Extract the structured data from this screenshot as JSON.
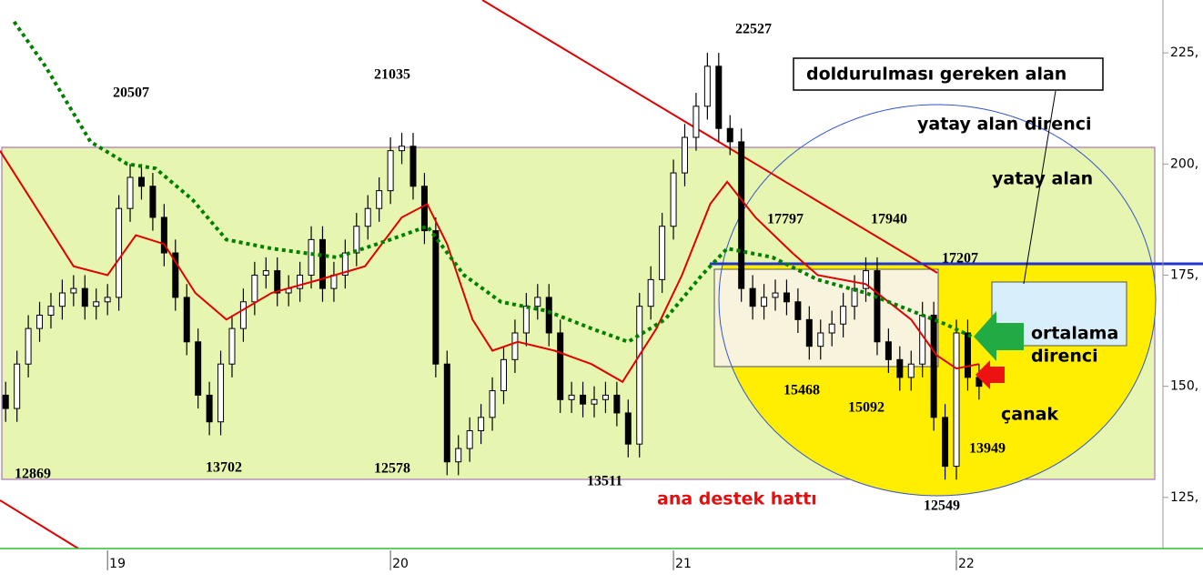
{
  "chart_data": {
    "type": "candlestick",
    "x": [
      18.64,
      18.68,
      18.72,
      18.76,
      18.8,
      18.84,
      18.88,
      18.92,
      18.96,
      19.0,
      19.04,
      19.08,
      19.12,
      19.16,
      19.2,
      19.24,
      19.28,
      19.32,
      19.36,
      19.4,
      19.44,
      19.48,
      19.52,
      19.56,
      19.6,
      19.64,
      19.68,
      19.72,
      19.76,
      19.8,
      19.84,
      19.88,
      19.92,
      19.96,
      20.0,
      20.04,
      20.08,
      20.12,
      20.16,
      20.2,
      20.24,
      20.28,
      20.32,
      20.36,
      20.4,
      20.44,
      20.48,
      20.52,
      20.56,
      20.6,
      20.64,
      20.68,
      20.72,
      20.76,
      20.8,
      20.84,
      20.88,
      20.92,
      20.96,
      21.0,
      21.04,
      21.08,
      21.12,
      21.16,
      21.2,
      21.24,
      21.28,
      21.32,
      21.36,
      21.4,
      21.44,
      21.48,
      21.52,
      21.56,
      21.6,
      21.64,
      21.68,
      21.72,
      21.76,
      21.8,
      21.84,
      21.88,
      21.92,
      21.96,
      22.0,
      22.04,
      22.08
    ],
    "open": [
      148,
      145,
      155,
      163,
      166,
      168,
      171,
      172,
      168,
      169,
      170,
      190,
      197,
      195,
      188,
      180,
      170,
      160,
      148,
      142,
      155,
      163,
      169,
      175,
      176,
      171,
      172,
      175,
      183,
      172,
      175,
      180,
      186,
      190,
      194,
      203,
      204,
      195,
      185,
      155,
      133,
      136,
      140,
      143,
      149,
      156,
      162,
      168,
      170,
      162,
      147,
      148,
      146,
      147,
      148,
      144,
      137,
      168,
      174,
      186,
      198,
      206,
      213,
      222,
      208,
      205,
      172,
      168,
      170,
      171,
      169,
      165,
      159,
      162,
      164,
      168,
      172,
      176,
      160,
      156,
      152,
      155,
      166,
      143,
      132,
      162,
      152
    ],
    "high": [
      151,
      158,
      166,
      169,
      171,
      174,
      175,
      175,
      172,
      173,
      193,
      200,
      200,
      198,
      191,
      183,
      173,
      163,
      151,
      158,
      166,
      172,
      178,
      179,
      179,
      175,
      178,
      186,
      186,
      178,
      183,
      189,
      193,
      197,
      206,
      207,
      207,
      198,
      188,
      158,
      139,
      143,
      146,
      152,
      159,
      165,
      171,
      173,
      173,
      165,
      151,
      151,
      150,
      151,
      151,
      147,
      171,
      177,
      189,
      201,
      209,
      216,
      225,
      225,
      211,
      208,
      175,
      173,
      174,
      174,
      172,
      168,
      165,
      167,
      171,
      175,
      179,
      179,
      163,
      159,
      158,
      169,
      169,
      146,
      165,
      165,
      155
    ],
    "low": [
      142,
      142,
      152,
      160,
      163,
      165,
      168,
      165,
      165,
      166,
      167,
      187,
      192,
      185,
      177,
      167,
      157,
      145,
      139,
      139,
      152,
      160,
      166,
      172,
      168,
      168,
      169,
      172,
      169,
      169,
      172,
      177,
      183,
      187,
      191,
      200,
      192,
      182,
      152,
      130,
      130,
      133,
      137,
      140,
      146,
      153,
      159,
      165,
      159,
      144,
      144,
      143,
      143,
      144,
      141,
      134,
      134,
      165,
      171,
      183,
      195,
      203,
      210,
      205,
      202,
      169,
      165,
      165,
      167,
      166,
      162,
      156,
      156,
      159,
      161,
      165,
      169,
      157,
      153,
      149,
      149,
      152,
      140,
      129,
      129,
      149,
      147
    ],
    "close": [
      145,
      155,
      163,
      166,
      168,
      171,
      172,
      168,
      169,
      170,
      190,
      197,
      195,
      188,
      180,
      170,
      160,
      148,
      142,
      155,
      163,
      169,
      175,
      176,
      171,
      172,
      175,
      183,
      172,
      175,
      180,
      186,
      190,
      194,
      203,
      204,
      195,
      185,
      155,
      133,
      136,
      140,
      143,
      149,
      156,
      162,
      168,
      170,
      162,
      147,
      148,
      146,
      147,
      148,
      144,
      137,
      168,
      174,
      186,
      198,
      206,
      213,
      222,
      208,
      205,
      172,
      168,
      170,
      171,
      169,
      165,
      159,
      162,
      164,
      168,
      172,
      176,
      160,
      156,
      152,
      155,
      166,
      143,
      132,
      162,
      152,
      150
    ],
    "series": [
      {
        "color": "#e00000",
        "style": "solid",
        "x": [
          18.62,
          18.88,
          19.0,
          19.1,
          19.2,
          19.31,
          19.42,
          19.58,
          19.75,
          19.91,
          20.04,
          20.13,
          20.2,
          20.29,
          20.36,
          20.45,
          20.58,
          20.71,
          20.82,
          20.94,
          21.03,
          21.13,
          21.19,
          21.29,
          21.42,
          21.51,
          21.68,
          21.84,
          21.93,
          22.0,
          22.08
        ],
        "values": [
          203,
          177,
          175,
          184,
          182,
          171,
          165,
          171,
          174,
          177,
          188,
          191,
          182,
          165,
          158,
          160,
          158,
          155,
          151,
          163,
          175,
          191,
          196,
          188,
          180,
          175,
          173,
          165,
          157,
          154,
          155
        ]
      },
      {
        "color": "#008000",
        "style": "dotted",
        "x": [
          18.67,
          18.78,
          18.94,
          19.07,
          19.17,
          19.3,
          19.42,
          19.58,
          19.81,
          20.0,
          20.13,
          20.26,
          20.39,
          20.55,
          20.71,
          20.84,
          20.97,
          21.1,
          21.19,
          21.35,
          21.51,
          21.68,
          21.84,
          21.96,
          22.06
        ],
        "values": [
          232,
          222,
          205,
          200,
          199,
          192,
          183,
          181,
          179,
          183,
          186,
          175,
          169,
          167,
          163,
          160,
          165,
          175,
          181,
          179,
          174,
          171,
          167,
          164,
          161
        ]
      }
    ],
    "xlim": [
      18.62,
      22.73
    ],
    "xticks": [
      19,
      20,
      21,
      22
    ],
    "ylim": [
      113.5,
      236.9
    ],
    "yticks": [
      {
        "value": 125,
        "label": "125,"
      },
      {
        "value": 150,
        "label": "150,"
      },
      {
        "value": 175,
        "label": "175,"
      },
      {
        "value": 200,
        "label": "200,"
      },
      {
        "value": 225,
        "label": "225,"
      }
    ],
    "up_color": "#ffffff",
    "down_color": "#000000",
    "annotations": [
      "20507",
      "21035",
      "22527",
      "17797",
      "17940",
      "17207",
      "15468",
      "15092",
      "13949",
      "12549",
      "12869",
      "13702",
      "12578",
      "13511"
    ],
    "notes": [
      "doldurulması gereken alan",
      "yatay alan direnci",
      "yatay alan",
      "ortalama",
      "direnci",
      "çanak",
      "ana destek hattı"
    ]
  }
}
